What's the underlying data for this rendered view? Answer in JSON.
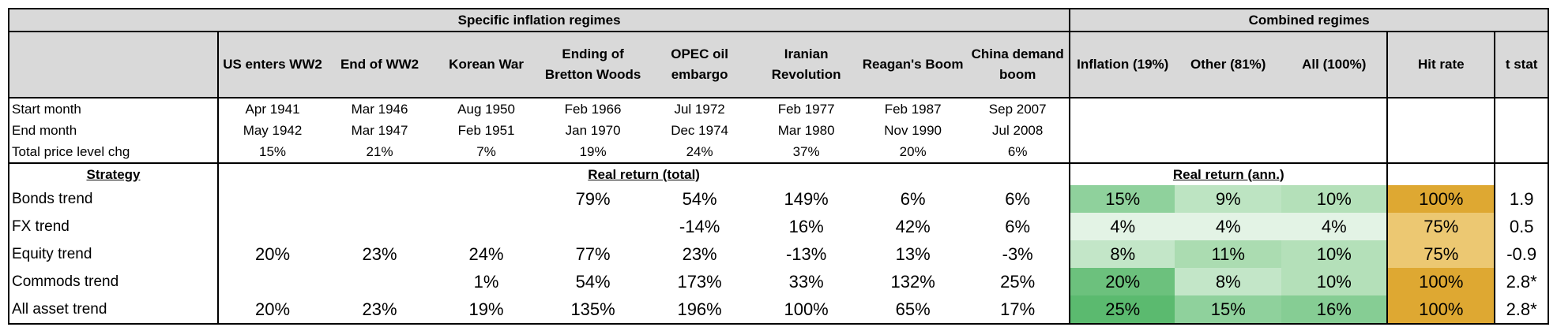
{
  "header": {
    "specific": "Specific inflation regimes",
    "combined": "Combined regimes"
  },
  "columns": {
    "regimes": [
      "US enters WW2",
      "End of WW2",
      "Korean War",
      "Ending of Bretton Woods",
      "OPEC oil embargo",
      "Iranian Revolution",
      "Reagan's Boom",
      "China demand boom"
    ],
    "combined": [
      "Inflation (19%)",
      "Other (81%)",
      "All (100%)"
    ],
    "hit_rate": "Hit rate",
    "t_stat": "t stat"
  },
  "meta_rows": [
    {
      "label": "Start month",
      "values": [
        "Apr 1941",
        "Mar 1946",
        "Aug 1950",
        "Feb 1966",
        "Jul 1972",
        "Feb 1977",
        "Feb 1987",
        "Sep 2007"
      ]
    },
    {
      "label": "End month",
      "values": [
        "May 1942",
        "Mar 1947",
        "Feb 1951",
        "Jan 1970",
        "Dec 1974",
        "Mar 1980",
        "Nov 1990",
        "Jul 2008"
      ]
    },
    {
      "label": "Total price level chg",
      "values": [
        "15%",
        "21%",
        "7%",
        "19%",
        "24%",
        "37%",
        "20%",
        "6%"
      ]
    }
  ],
  "section": {
    "strategy": "Strategy",
    "real_total": "Real return (total)",
    "real_ann": "Real return (ann.)"
  },
  "rows": [
    {
      "label": "Bonds trend",
      "regimes": [
        "",
        "",
        "",
        "79%",
        "54%",
        "149%",
        "6%",
        "6%"
      ],
      "combined": [
        "15%",
        "9%",
        "10%"
      ],
      "combined_colors": [
        "#8fd19c",
        "#bde4c2",
        "#b4e0b9"
      ],
      "hit": "100%",
      "hit_color": "#dea832",
      "t": "1.9"
    },
    {
      "label": "FX trend",
      "regimes": [
        "",
        "",
        "",
        "",
        "-14%",
        "16%",
        "42%",
        "6%"
      ],
      "combined": [
        "4%",
        "4%",
        "4%"
      ],
      "combined_colors": [
        "#e3f3e5",
        "#e3f3e5",
        "#e3f3e5"
      ],
      "hit": "75%",
      "hit_color": "#ecc872",
      "t": "0.5"
    },
    {
      "label": "Equity trend",
      "regimes": [
        "20%",
        "23%",
        "24%",
        "77%",
        "23%",
        "-13%",
        "13%",
        "-3%"
      ],
      "combined": [
        "8%",
        "11%",
        "10%"
      ],
      "combined_colors": [
        "#c3e6c8",
        "#abdcb1",
        "#b4e0b9"
      ],
      "hit": "75%",
      "hit_color": "#ecc872",
      "t": "-0.9"
    },
    {
      "label": "Commods trend",
      "regimes": [
        "",
        "",
        "1%",
        "54%",
        "173%",
        "33%",
        "132%",
        "25%"
      ],
      "combined": [
        "20%",
        "8%",
        "10%"
      ],
      "combined_colors": [
        "#6cc17d",
        "#c3e6c8",
        "#b4e0b9"
      ],
      "hit": "100%",
      "hit_color": "#dea832",
      "t": "2.8*"
    },
    {
      "label": "All asset trend",
      "regimes": [
        "20%",
        "23%",
        "19%",
        "135%",
        "196%",
        "100%",
        "65%",
        "17%"
      ],
      "combined": [
        "25%",
        "15%",
        "16%"
      ],
      "combined_colors": [
        "#5bba6f",
        "#8fd19c",
        "#86cd94"
      ],
      "hit": "100%",
      "hit_color": "#dea832",
      "t": "2.8*"
    }
  ]
}
